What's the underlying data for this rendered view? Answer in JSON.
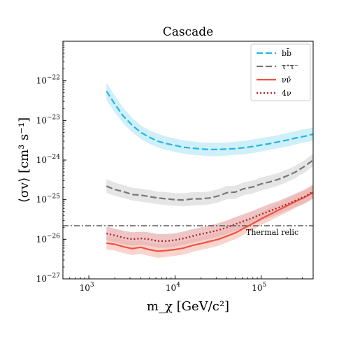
{
  "chart_data": {
    "type": "line",
    "title": "Cascade",
    "xlabel": "m_χ [GeV/c²]",
    "ylabel": "⟨σv⟩ [cm³ s⁻¹]",
    "x_scale": "log",
    "y_scale": "log",
    "xlim": [
      500,
      400000
    ],
    "ylim": [
      1e-27,
      1e-21
    ],
    "grid": false,
    "legend_position": "top-right",
    "x_ticks": [
      {
        "value": 1000,
        "base": "10",
        "exp": "3"
      },
      {
        "value": 10000,
        "base": "10",
        "exp": "4"
      },
      {
        "value": 100000,
        "base": "10",
        "exp": "5"
      }
    ],
    "y_ticks": [
      {
        "value": 1e-27,
        "base": "10",
        "exp": "−27"
      },
      {
        "value": 1e-26,
        "base": "10",
        "exp": "−26"
      },
      {
        "value": 1e-25,
        "base": "10",
        "exp": "−25"
      },
      {
        "value": 1e-24,
        "base": "10",
        "exp": "−24"
      },
      {
        "value": 1e-23,
        "base": "10",
        "exp": "−23"
      },
      {
        "value": 1e-22,
        "base": "10",
        "exp": "−22"
      }
    ],
    "x": [
      1600,
      2000,
      2500,
      3200,
      4000,
      5000,
      6300,
      8000,
      10000,
      12500,
      16000,
      20000,
      25000,
      32000,
      40000,
      50000,
      63000,
      80000,
      100000,
      125000,
      160000,
      200000,
      250000,
      320000,
      400000
    ],
    "series": [
      {
        "name": "bb̄",
        "style": "dashed",
        "color": "#1fb8e8",
        "band_color": "#bfe9f7",
        "values": [
          5.5e-23,
          2.6e-23,
          1.3e-23,
          7.5e-24,
          5e-24,
          3.8e-24,
          3e-24,
          2.6e-24,
          2.35e-24,
          2.1e-24,
          2e-24,
          1.9e-24,
          1.85e-24,
          1.85e-24,
          1.9e-24,
          1.95e-24,
          2.05e-24,
          2.2e-24,
          2.4e-24,
          2.6e-24,
          2.9e-24,
          3.2e-24,
          3.6e-24,
          4e-24,
          4.5e-24
        ],
        "band_lower": [
          3.3e-23,
          1.6e-23,
          8.5e-24,
          5e-24,
          3.4e-24,
          2.6e-24,
          2.1e-24,
          1.8e-24,
          1.6e-24,
          1.45e-24,
          1.35e-24,
          1.3e-24,
          1.25e-24,
          1.25e-24,
          1.3e-24,
          1.35e-24,
          1.4e-24,
          1.5e-24,
          1.65e-24,
          1.8e-24,
          2e-24,
          2.2e-24,
          2.5e-24,
          2.8e-24,
          3.1e-24
        ],
        "band_upper": [
          9e-23,
          4.2e-23,
          2.1e-23,
          1.15e-23,
          7.5e-24,
          5.7e-24,
          4.6e-24,
          3.9e-24,
          3.5e-24,
          3.15e-24,
          2.95e-24,
          2.8e-24,
          2.75e-24,
          2.75e-24,
          2.8e-24,
          2.9e-24,
          3.05e-24,
          3.3e-24,
          3.6e-24,
          3.9e-24,
          4.3e-24,
          4.8e-24,
          5.4e-24,
          6e-24,
          6.6e-24
        ]
      },
      {
        "name": "τ⁺τ⁻",
        "style": "dashed",
        "color": "#777777",
        "band_color": "#dcdcdc",
        "values": [
          2.2e-25,
          1.8e-25,
          1.6e-25,
          1.35e-25,
          1.3e-25,
          1.2e-25,
          1.1e-25,
          1.05e-25,
          1e-25,
          9.8e-26,
          1.05e-25,
          1.05e-25,
          1.1e-25,
          1.25e-25,
          1.5e-25,
          1.55e-25,
          1.9e-25,
          2.1e-25,
          2.5e-25,
          2.8e-25,
          3.3e-25,
          4e-25,
          5e-25,
          7e-25,
          1e-24
        ],
        "band_lower": [
          1.5e-25,
          1.25e-25,
          1.1e-25,
          9.5e-26,
          9e-26,
          8.3e-26,
          7.7e-26,
          7.3e-26,
          7e-26,
          6.8e-26,
          7.2e-26,
          7.3e-26,
          7.6e-26,
          8.6e-26,
          1.02e-25,
          1.06e-25,
          1.3e-25,
          1.45e-25,
          1.7e-25,
          1.95e-25,
          2.3e-25,
          2.8e-25,
          3.5e-25,
          4.9e-25,
          7e-25
        ],
        "band_upper": [
          3.3e-25,
          2.7e-25,
          2.35e-25,
          2e-25,
          1.9e-25,
          1.75e-25,
          1.6e-25,
          1.55e-25,
          1.45e-25,
          1.45e-25,
          1.55e-25,
          1.55e-25,
          1.6e-25,
          1.85e-25,
          2.2e-25,
          2.25e-25,
          2.75e-25,
          3.05e-25,
          3.6e-25,
          4.1e-25,
          4.8e-25,
          5.8e-25,
          7.2e-25,
          1e-24,
          1.45e-24
        ]
      },
      {
        "name": "νν̄",
        "style": "solid",
        "color": "#f0533f",
        "band_color": "#f9c6be",
        "values": [
          8e-27,
          7.5e-27,
          6.5e-27,
          5.8e-27,
          6.3e-27,
          5.5e-27,
          5e-27,
          5.2e-27,
          5.5e-27,
          6e-27,
          7e-27,
          7.8e-27,
          8.8e-27,
          1e-26,
          1.2e-26,
          1.45e-26,
          1.9e-26,
          2.5e-26,
          3.3e-26,
          4.2e-26,
          5.5e-26,
          7e-26,
          9e-26,
          1.15e-25,
          1.5e-25
        ],
        "band_lower": [
          5.5e-27,
          5.2e-27,
          4.5e-27,
          4e-27,
          4.3e-27,
          3.8e-27,
          3.4e-27,
          3.6e-27,
          3.8e-27,
          4.1e-27,
          4.8e-27,
          5.4e-27,
          6e-27,
          6.9e-27,
          8.3e-27,
          1e-26,
          1.3e-26,
          1.7e-26,
          2.3e-26,
          2.9e-26,
          3.8e-26,
          4.8e-26,
          6.2e-26,
          8e-26,
          1.05e-25
        ],
        "band_upper": [
          1.2e-26,
          1.1e-26,
          9.8e-27,
          8.7e-27,
          9.3e-27,
          8.2e-27,
          7.5e-27,
          7.8e-27,
          8.2e-27,
          9e-27,
          1.05e-26,
          1.17e-26,
          1.32e-26,
          1.5e-26,
          1.8e-26,
          2.2e-26,
          2.85e-26,
          3.7e-26,
          4.9e-26,
          6.2e-26,
          8.1e-26,
          1.03e-25,
          1.32e-25,
          1.7e-25,
          2.2e-25
        ]
      },
      {
        "name": "4ν",
        "style": "dotted",
        "color": "#b3262b",
        "band_color": "#e8b3b3",
        "values": [
          1.4e-26,
          1.25e-26,
          1.1e-26,
          1e-26,
          1.05e-26,
          1e-26,
          9e-27,
          9e-27,
          9.5e-27,
          1.05e-26,
          1.2e-26,
          1.35e-26,
          1.5e-26,
          1.7e-26,
          2e-26,
          2.4e-26,
          2.9e-26,
          3.5e-26,
          4.3e-26,
          5.2e-26,
          6.3e-26,
          7.7e-26,
          9.5e-26,
          1.2e-25,
          1.6e-25
        ],
        "band_lower": [
          9.5e-27,
          8.5e-27,
          7.5e-27,
          6.8e-27,
          7.2e-27,
          6.8e-27,
          6.1e-27,
          6.1e-27,
          6.5e-27,
          7.2e-27,
          8.2e-27,
          9.2e-27,
          1.03e-26,
          1.16e-26,
          1.37e-26,
          1.64e-26,
          1.98e-26,
          2.4e-26,
          2.95e-26,
          3.55e-26,
          4.3e-26,
          5.3e-26,
          6.5e-26,
          8.2e-26,
          1.1e-25
        ],
        "band_upper": [
          2.1e-26,
          1.85e-26,
          1.65e-26,
          1.5e-26,
          1.55e-26,
          1.5e-26,
          1.35e-26,
          1.35e-26,
          1.42e-26,
          1.57e-26,
          1.8e-26,
          2e-26,
          2.25e-26,
          2.55e-26,
          3e-26,
          3.6e-26,
          4.35e-26,
          5.2e-26,
          6.4e-26,
          7.8e-26,
          9.4e-26,
          1.15e-25,
          1.42e-25,
          1.8e-25,
          2.4e-25
        ]
      }
    ],
    "reference_lines": [
      {
        "label": "Thermal relic",
        "y": 2.2e-26,
        "style": "dash-dot",
        "color": "#555555"
      }
    ]
  }
}
